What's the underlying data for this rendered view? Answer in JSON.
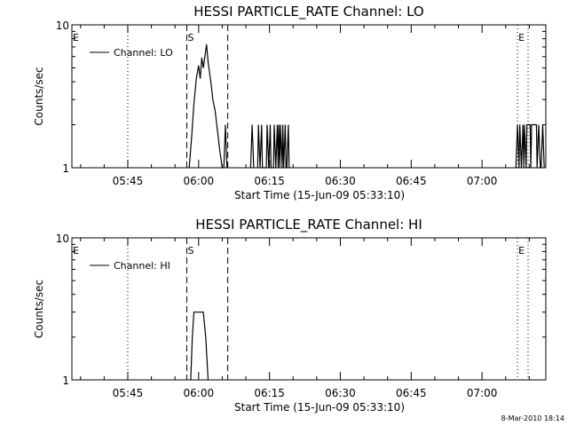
{
  "footer": {
    "timestamp": "8-Mar-2010 18:14"
  },
  "chart_data": [
    {
      "type": "line",
      "title": "HESSI PARTICLE_RATE Channel: LO",
      "xlabel": "Start Time (15-Jun-09 05:33:10)",
      "ylabel": "Counts/sec",
      "yscale": "log",
      "ylim": [
        1,
        10
      ],
      "y_ticks": [
        {
          "value": 1,
          "label": "1"
        },
        {
          "value": 10,
          "label": "10"
        }
      ],
      "xlim": [
        "05:33:10",
        "07:13:30"
      ],
      "x_ticks": [
        {
          "value": "05:45",
          "label": "05:45"
        },
        {
          "value": "06:00",
          "label": "06:00"
        },
        {
          "value": "06:15",
          "label": "06:15"
        },
        {
          "value": "06:30",
          "label": "06:30"
        },
        {
          "value": "06:45",
          "label": "06:45"
        },
        {
          "value": "07:00",
          "label": "07:00"
        }
      ],
      "legend": {
        "position": "top-left",
        "entries": [
          "Channel: LO"
        ]
      },
      "series": [
        {
          "name": "Channel: LO",
          "x": [
            "05:57:20",
            "05:58:00",
            "05:58:30",
            "05:59:00",
            "05:59:30",
            "06:00:00",
            "06:00:20",
            "06:00:40",
            "06:01:00",
            "06:01:20",
            "06:01:40",
            "06:02:00",
            "06:02:20",
            "06:02:40",
            "06:03:00",
            "06:03:30",
            "06:04:00",
            "06:04:30",
            "06:05:00",
            "06:05:20",
            "06:05:40",
            "06:06:00",
            "06:10:50",
            "06:11:00",
            "06:11:20",
            "06:11:40",
            "06:11:50",
            "06:12:30",
            "06:12:40",
            "06:13:00",
            "06:13:20",
            "06:13:30",
            "06:14:20",
            "06:14:30",
            "06:14:50",
            "06:15:10",
            "06:15:20",
            "06:15:50",
            "06:16:00",
            "06:16:20",
            "06:16:40",
            "06:16:50",
            "06:17:00",
            "06:17:10",
            "06:17:20",
            "06:17:40",
            "06:17:50",
            "06:18:00",
            "06:18:20",
            "06:18:30",
            "06:18:40",
            "06:19:00",
            "06:19:10",
            "07:07:00",
            "07:07:10",
            "07:07:30",
            "07:07:50",
            "07:08:00",
            "07:08:20",
            "07:08:40",
            "07:08:50",
            "07:09:00",
            "07:09:20",
            "07:09:30",
            "07:10:00",
            "07:10:10",
            "07:10:20",
            "07:10:30",
            "07:11:30",
            "07:11:40",
            "07:12:00",
            "07:12:20",
            "07:12:30",
            "07:12:50",
            "07:13:10"
          ],
          "values": [
            null,
            1,
            1.6,
            2.8,
            4.2,
            5.2,
            4.2,
            5.9,
            5.0,
            6.0,
            7.3,
            5.5,
            4.6,
            3.8,
            3.0,
            2.5,
            1.8,
            1.3,
            1,
            1,
            2,
            1,
            null,
            1,
            2,
            1,
            null,
            1,
            2,
            1,
            2,
            1,
            1,
            2,
            1,
            2,
            1,
            1,
            2,
            1,
            2,
            1,
            2,
            1,
            2,
            1,
            2,
            1,
            2,
            1,
            1,
            2,
            1,
            null,
            1,
            2,
            1,
            2,
            1,
            2,
            1,
            2,
            1,
            2,
            2,
            2,
            1,
            2,
            2,
            1,
            2,
            1,
            1,
            2,
            1
          ]
        }
      ],
      "annotations": [
        {
          "label": "E",
          "x": "05:33:10",
          "style": "dotted"
        },
        {
          "label": "",
          "x": "05:45:00",
          "style": "dotted"
        },
        {
          "label": "S",
          "x": "05:57:30",
          "style": "dashed"
        },
        {
          "label": "",
          "x": "06:06:10",
          "style": "dashed"
        },
        {
          "label": "E",
          "x": "07:07:30",
          "style": "dotted"
        },
        {
          "label": "",
          "x": "07:18:40",
          "style": "dotted"
        }
      ]
    },
    {
      "type": "line",
      "title": "HESSI PARTICLE_RATE Channel: HI",
      "xlabel": "Start Time (15-Jun-09 05:33:10)",
      "ylabel": "Counts/sec",
      "yscale": "log",
      "ylim": [
        1,
        10
      ],
      "y_ticks": [
        {
          "value": 1,
          "label": "1"
        },
        {
          "value": 10,
          "label": "10"
        }
      ],
      "xlim": [
        "05:33:10",
        "07:13:30"
      ],
      "x_ticks": [
        {
          "value": "05:45",
          "label": "05:45"
        },
        {
          "value": "06:00",
          "label": "06:00"
        },
        {
          "value": "06:15",
          "label": "06:15"
        },
        {
          "value": "06:30",
          "label": "06:30"
        },
        {
          "value": "06:45",
          "label": "06:45"
        },
        {
          "value": "07:00",
          "label": "07:00"
        }
      ],
      "legend": {
        "position": "top-left",
        "entries": [
          "Channel: HI"
        ]
      },
      "series": [
        {
          "name": "Channel: HI",
          "x": [
            "05:58:20",
            "05:58:40",
            "05:59:00",
            "06:01:00",
            "06:01:30",
            "06:02:00"
          ],
          "values": [
            1,
            2,
            3,
            3,
            2,
            1
          ]
        }
      ],
      "annotations": [
        {
          "label": "E",
          "x": "05:33:10",
          "style": "dotted"
        },
        {
          "label": "",
          "x": "05:45:00",
          "style": "dotted"
        },
        {
          "label": "S",
          "x": "05:57:30",
          "style": "dashed"
        },
        {
          "label": "",
          "x": "06:06:10",
          "style": "dashed"
        },
        {
          "label": "E",
          "x": "07:07:30",
          "style": "dotted"
        },
        {
          "label": "",
          "x": "07:18:40",
          "style": "dotted"
        }
      ]
    }
  ]
}
